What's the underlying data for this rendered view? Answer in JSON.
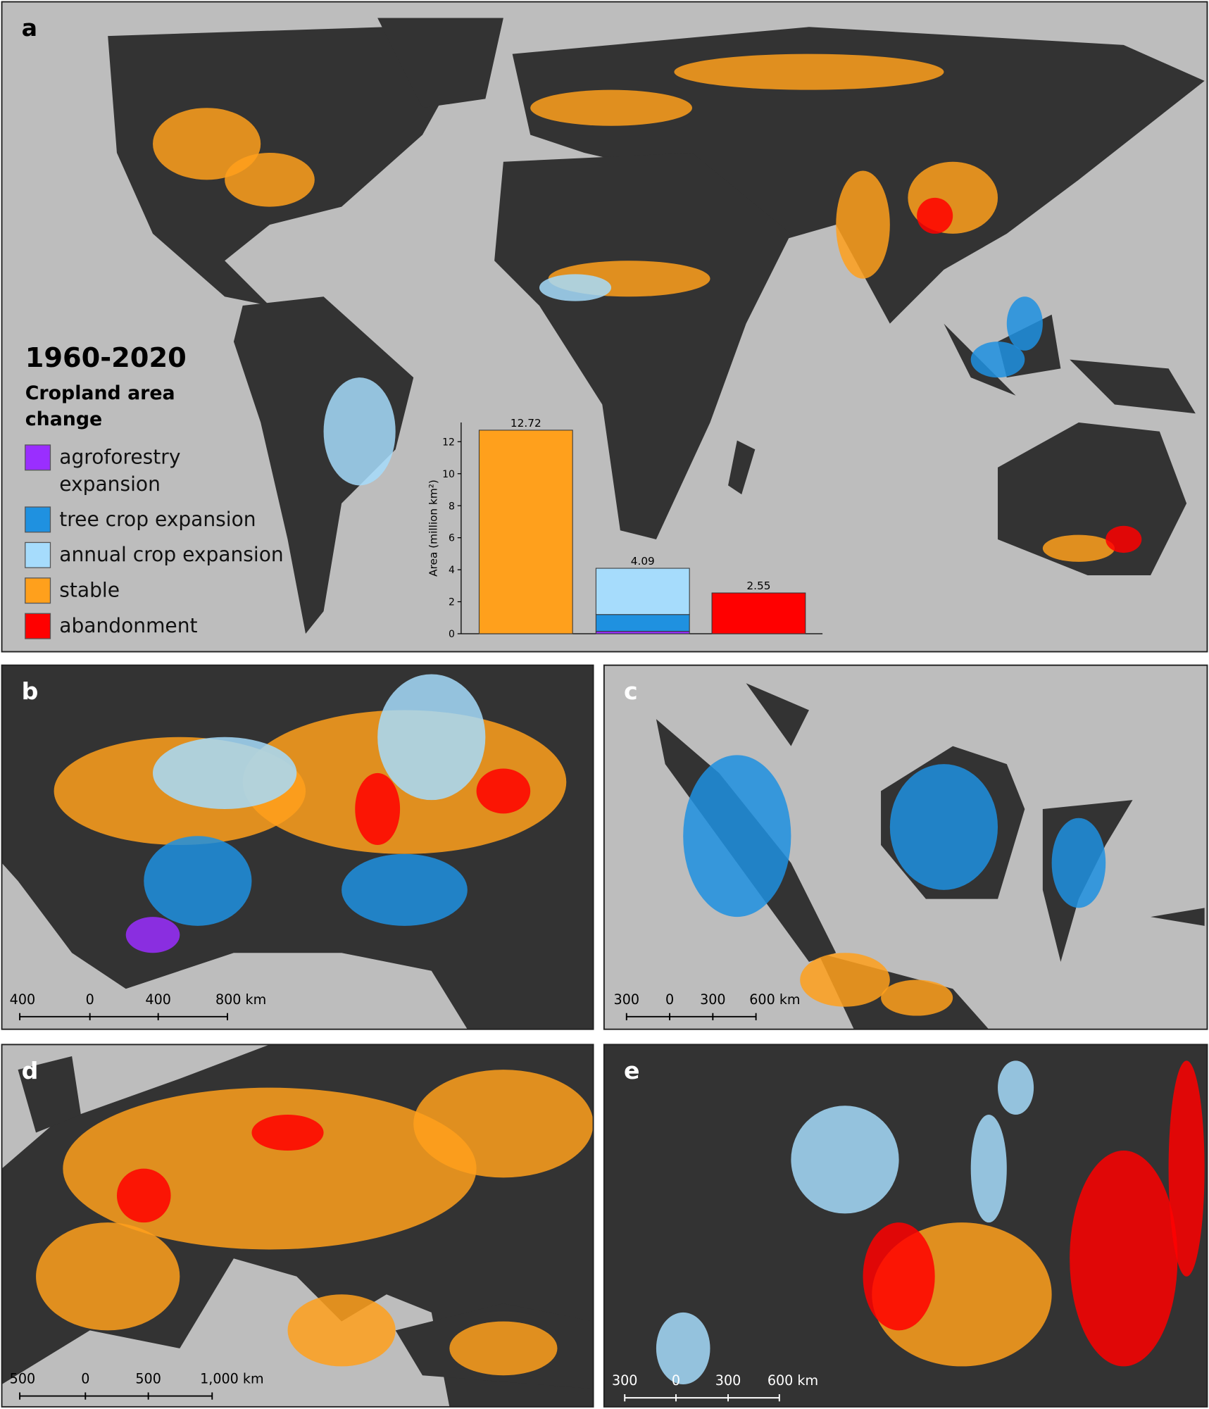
{
  "panel_labels": [
    "a",
    "b",
    "c",
    "d",
    "e"
  ],
  "legend": {
    "title": "1960-2020",
    "subtitle_lines": [
      "Cropland area",
      "change"
    ]
  },
  "chart_data": {
    "type": "bar",
    "stacked": true,
    "ylabel": "Area (million km²)",
    "categories": [
      null,
      null,
      null
    ],
    "series": [
      {
        "name": "agroforestry expansion",
        "color": "#9a2eff",
        "values": [
          null,
          0.15,
          null
        ]
      },
      {
        "name": "tree crop expansion",
        "color": "#1f91e0",
        "values": [
          null,
          1.05,
          null
        ]
      },
      {
        "name": "annual crop expansion",
        "color": "#a6dcfc",
        "values": [
          null,
          2.89,
          null
        ]
      },
      {
        "name": "stable",
        "color": "#ffa01c",
        "values": [
          12.72,
          null,
          null
        ]
      },
      {
        "name": "abandonment",
        "color": "#ff0000",
        "values": [
          null,
          null,
          2.55
        ]
      }
    ],
    "total_labels": [
      12.72,
      4.09,
      2.55
    ],
    "ylim": [
      0,
      13.2
    ],
    "yticks": [
      0,
      2,
      4,
      6,
      8,
      10,
      12
    ]
  },
  "scale_bars": [
    {
      "labels": [
        "400",
        "0",
        "400",
        "800 km"
      ]
    },
    {
      "labels": [
        "300",
        "0",
        "300",
        "600 km"
      ]
    },
    {
      "labels": [
        "500",
        "0",
        "500",
        "1,000 km"
      ]
    },
    {
      "labels": [
        "300",
        "0",
        "300",
        "600 km"
      ]
    }
  ]
}
